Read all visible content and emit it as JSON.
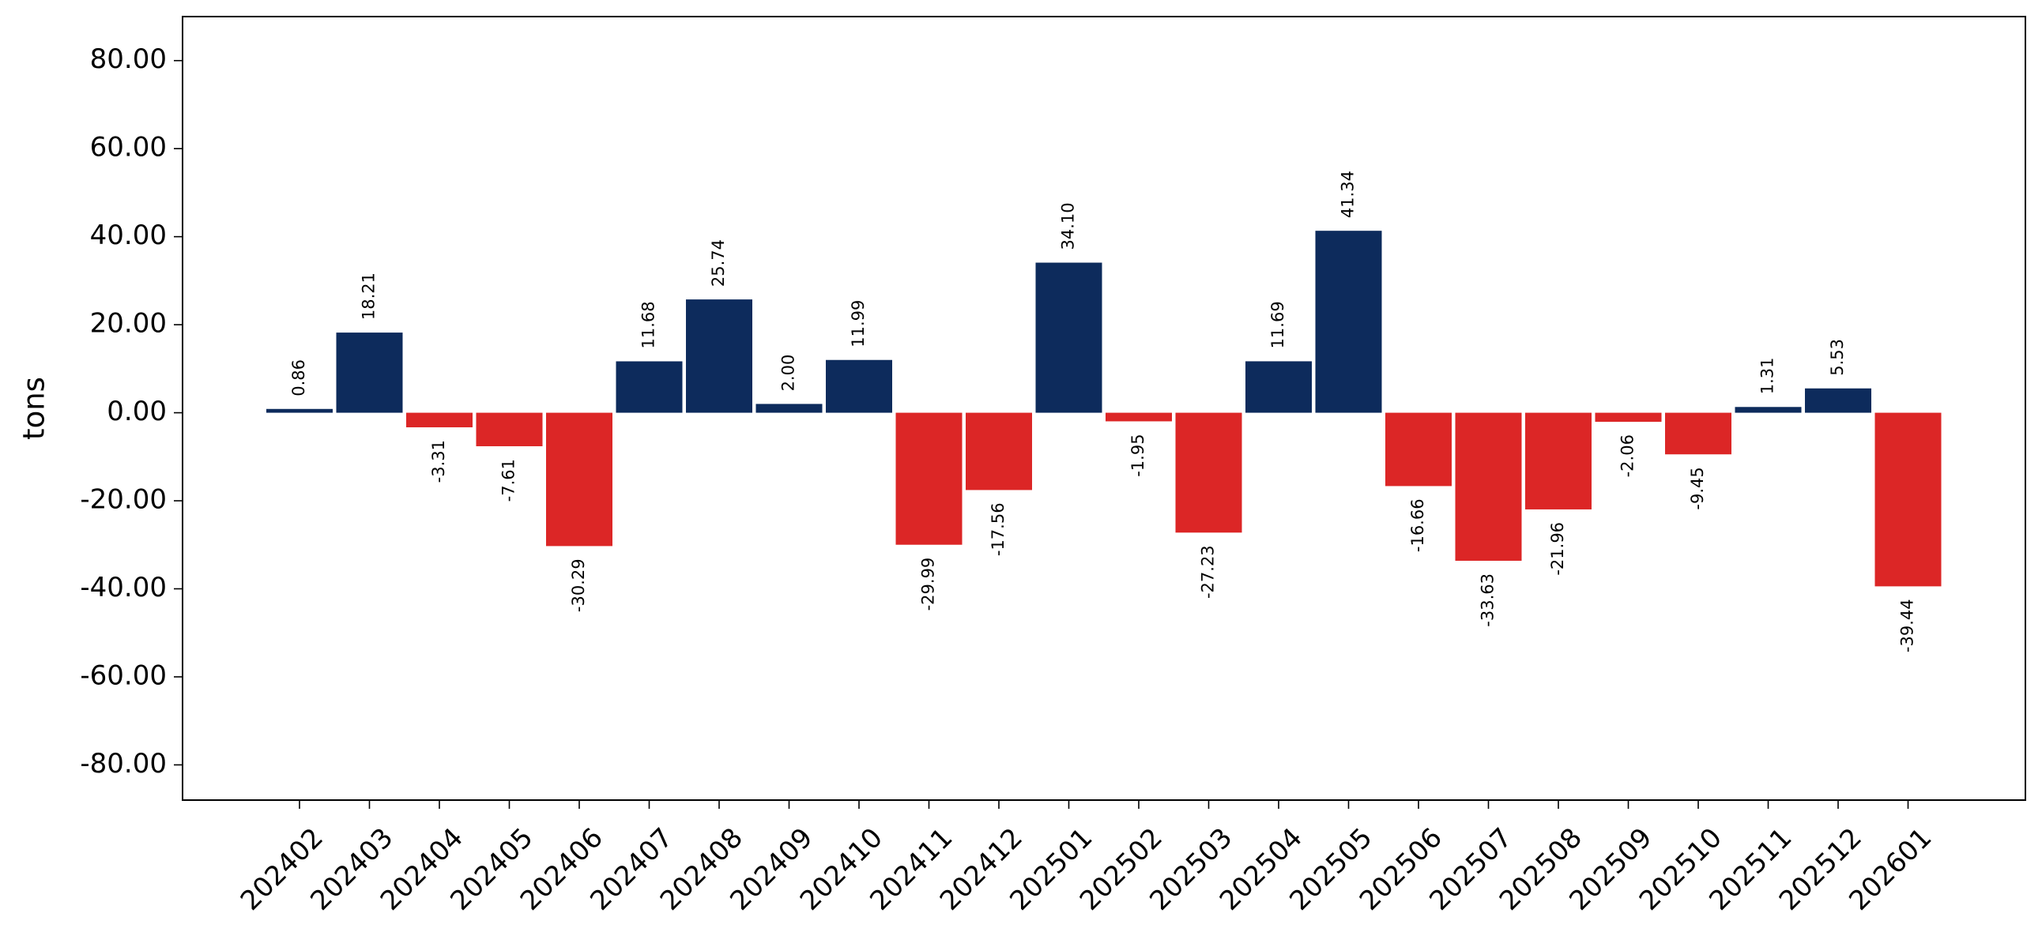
{
  "chart_data": {
    "type": "bar",
    "y_label": "tons",
    "categories": [
      "202402",
      "202403",
      "202404",
      "202405",
      "202406",
      "202407",
      "202408",
      "202409",
      "202410",
      "202411",
      "202412",
      "202501",
      "202502",
      "202503",
      "202504",
      "202505",
      "202506",
      "202507",
      "202508",
      "202509",
      "202510",
      "202511",
      "202512",
      "202601"
    ],
    "values": [
      0.86,
      18.21,
      -3.31,
      -7.61,
      -30.29,
      11.68,
      25.74,
      2.0,
      11.99,
      -29.99,
      -17.56,
      34.1,
      -1.95,
      -27.23,
      11.69,
      41.34,
      -16.66,
      -33.63,
      -21.96,
      -2.06,
      -9.45,
      1.31,
      5.53,
      -39.44
    ],
    "value_labels": [
      "0.86",
      "18.21",
      "-3.31",
      "-7.61",
      "-30.29",
      "11.68",
      "25.74",
      "2.00",
      "11.99",
      "-29.99",
      "-17.56",
      "34.10",
      "-1.95",
      "-27.23",
      "11.69",
      "41.34",
      "-16.66",
      "-33.63",
      "-21.96",
      "-2.06",
      "-9.45",
      "1.31",
      "5.53",
      "-39.44"
    ],
    "positive_color": "#0d2b5c",
    "negative_color": "#dc2626",
    "ylim": [
      -88,
      90
    ],
    "yticks": [
      {
        "value": -80,
        "label": "-80.00"
      },
      {
        "value": -60,
        "label": "-60.00"
      },
      {
        "value": -40,
        "label": "-40.00"
      },
      {
        "value": -20,
        "label": "-20.00"
      },
      {
        "value": 0,
        "label": "0.00"
      },
      {
        "value": 20,
        "label": "20.00"
      },
      {
        "value": 40,
        "label": "40.00"
      },
      {
        "value": 60,
        "label": "60.00"
      },
      {
        "value": 80,
        "label": "80.00"
      }
    ],
    "grid": false
  }
}
